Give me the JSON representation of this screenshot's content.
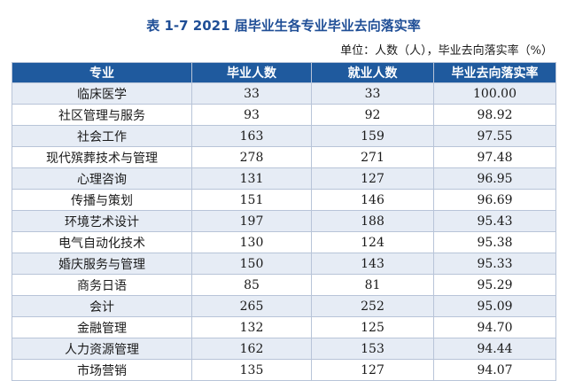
{
  "title": "表 1-7  2021 届毕业生各专业毕业去向落实率",
  "unit_note": "单位：人数（人），毕业去向落实率（%）",
  "table": {
    "headers": [
      "专业",
      "毕业人数",
      "就业人数",
      "毕业去向落实率"
    ],
    "rows": [
      [
        "临床医学",
        "33",
        "33",
        "100.00"
      ],
      [
        "社区管理与服务",
        "93",
        "92",
        "98.92"
      ],
      [
        "社会工作",
        "163",
        "159",
        "97.55"
      ],
      [
        "现代殡葬技术与管理",
        "278",
        "271",
        "97.48"
      ],
      [
        "心理咨询",
        "131",
        "127",
        "96.95"
      ],
      [
        "传播与策划",
        "151",
        "146",
        "96.69"
      ],
      [
        "环境艺术设计",
        "197",
        "188",
        "95.43"
      ],
      [
        "电气自动化技术",
        "130",
        "124",
        "95.38"
      ],
      [
        "婚庆服务与管理",
        "150",
        "143",
        "95.33"
      ],
      [
        "商务日语",
        "85",
        "81",
        "95.29"
      ],
      [
        "会计",
        "265",
        "252",
        "95.09"
      ],
      [
        "金融管理",
        "132",
        "125",
        "94.70"
      ],
      [
        "人力资源管理",
        "162",
        "153",
        "94.44"
      ],
      [
        "市场营销",
        "135",
        "127",
        "94.07"
      ]
    ]
  }
}
